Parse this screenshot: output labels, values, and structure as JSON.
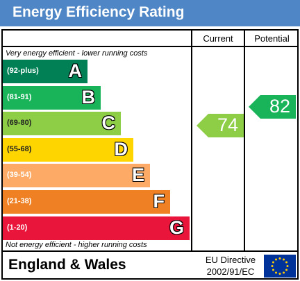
{
  "title": "Energy Efficiency Rating",
  "columns": {
    "current": "Current",
    "potential": "Potential"
  },
  "top_note": "Very energy efficient - lower running costs",
  "bottom_note": "Not energy efficient - higher running costs",
  "bands": [
    {
      "letter": "A",
      "range": "(92-plus)",
      "color": "#008054"
    },
    {
      "letter": "B",
      "range": "(81-91)",
      "color": "#19b459"
    },
    {
      "letter": "C",
      "range": "(69-80)",
      "color": "#8dce46"
    },
    {
      "letter": "D",
      "range": "(55-68)",
      "color": "#ffd500"
    },
    {
      "letter": "E",
      "range": "(39-54)",
      "color": "#fcaa65"
    },
    {
      "letter": "F",
      "range": "(21-38)",
      "color": "#ef8023"
    },
    {
      "letter": "G",
      "range": "(1-20)",
      "color": "#e9153b"
    }
  ],
  "current_rating": {
    "value": "74",
    "band": "C",
    "color": "#8dce46"
  },
  "potential_rating": {
    "value": "82",
    "band": "B",
    "color": "#19b459"
  },
  "footer": {
    "region": "England & Wales",
    "directive_line1": "EU Directive",
    "directive_line2": "2002/91/EC"
  },
  "flag": {
    "background": "#003399",
    "stars": "#ffcc00",
    "icon": "eu-flag-icon"
  }
}
